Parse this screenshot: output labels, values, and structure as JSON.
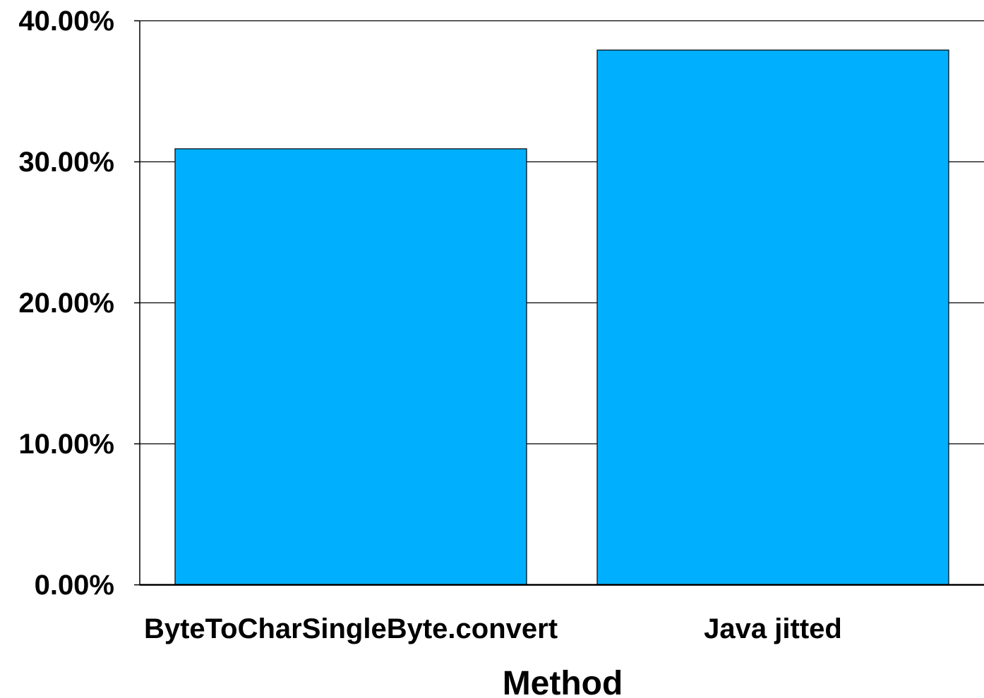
{
  "chart_data": {
    "type": "bar",
    "categories": [
      "ByteToCharSingleByte.convert",
      "Java jitted"
    ],
    "values": [
      30.9,
      37.9
    ],
    "value_unit": "%",
    "ylim": [
      0,
      40
    ],
    "yticks": [
      0,
      10,
      20,
      30,
      40
    ],
    "ytick_labels": [
      "0.00%",
      "10.00%",
      "20.00%",
      "30.00%",
      "40.00%"
    ],
    "xlabel": "Method",
    "ylabel": "",
    "title": "",
    "grid": "horizontal",
    "legend": "none",
    "colors": {
      "bar_fill": "#00B0FF",
      "bar_stroke": "#000000",
      "gridline": "#000000",
      "axis": "#000000"
    }
  }
}
